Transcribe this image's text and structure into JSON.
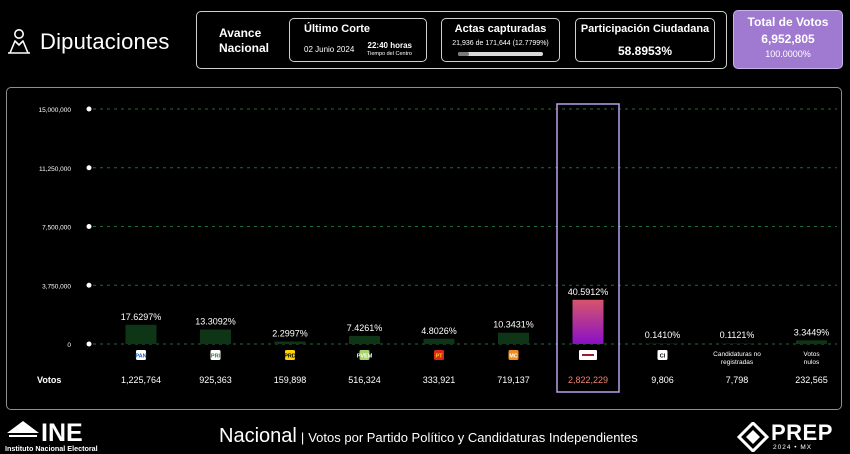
{
  "header": {
    "title": "Diputaciones"
  },
  "stats": {
    "avance_label_1": "Avance",
    "avance_label_2": "Nacional",
    "ultimo_corte_label": "Último Corte",
    "ultimo_corte_date": "02 Junio 2024",
    "ultimo_corte_time": "22:40 horas",
    "ultimo_corte_zone": "Tiempo del Centro",
    "actas_label": "Actas capturadas",
    "actas_value": "21,936 de 171,644 (12.7799%)",
    "actas_progress": 0.127799,
    "participacion_label": "Participación Ciudadana",
    "participacion_value": "58.8953%",
    "total_label": "Total de Votos",
    "total_value": "6,952,805",
    "total_pct": "100.0000%"
  },
  "chart_data": {
    "type": "bar",
    "title": "Votos por Partido Político y Candidaturas Independientes",
    "ylabel": "Votos",
    "ylim": [
      0,
      15000000
    ],
    "yticks": [
      "0",
      "3,750,000",
      "7,500,000",
      "11,250,000",
      "15,000,000"
    ],
    "ytick_values": [
      0,
      3750000,
      7500000,
      11250000,
      15000000
    ],
    "categories": [
      "PAN",
      "PRI",
      "PRD",
      "PVEM",
      "PT",
      "MC",
      "MORENA",
      "Candidaturas Independientes",
      "Candidaturas no registradas",
      "Votos nulos"
    ],
    "category_labels": [
      "",
      "",
      "",
      "",
      "",
      "",
      "",
      "",
      "Candidaturas no registradas",
      "Votos nulos"
    ],
    "values": [
      1225764,
      925363,
      159898,
      516324,
      333921,
      719137,
      2822229,
      9806,
      7798,
      232565
    ],
    "value_labels": [
      "1,225,764",
      "925,363",
      "159,898",
      "516,324",
      "333,921",
      "719,137",
      "2,822,229",
      "9,806",
      "7,798",
      "232,565"
    ],
    "percentages": [
      "17.6297%",
      "13.3092%",
      "2.2997%",
      "7.4261%",
      "4.8026%",
      "10.3431%",
      "40.5912%",
      "0.1410%",
      "0.1121%",
      "3.3449%"
    ],
    "icons": [
      "PAN",
      "PRI",
      "PRD",
      "PVEM",
      "PT",
      "MC",
      "morena",
      "CI",
      "",
      ""
    ],
    "highlighted": "MORENA",
    "grid": true,
    "colors": {
      "bar": "#0f3517",
      "highlight_top": "#d6556c",
      "highlight_bottom": "#8a10c7",
      "highlight_border": "#b9a0ea",
      "highlight_value": "#f1836f"
    }
  },
  "footer": {
    "ine_name": "INE",
    "ine_fullname": "Instituto Nacional Electoral",
    "nacional": "Nacional",
    "separator": "|",
    "subtitle": "Votos por Partido Político y Candidaturas Independientes",
    "prep_name": "PREP",
    "prep_year": "2024 • MX"
  }
}
